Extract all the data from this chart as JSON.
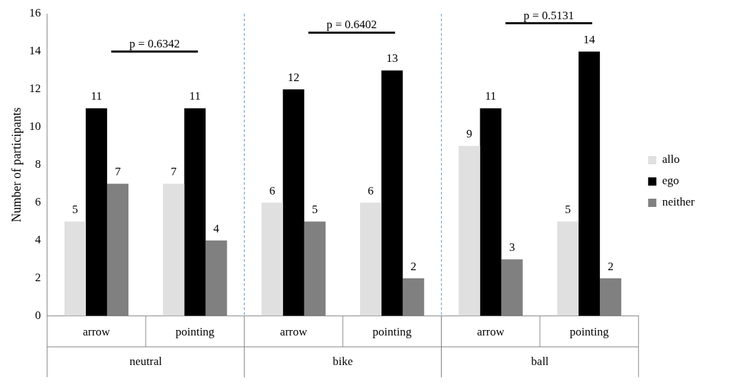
{
  "chart_data": {
    "type": "bar",
    "ylabel": "Number of participants",
    "categories": [
      "arrow",
      "pointing",
      "arrow",
      "pointing",
      "arrow",
      "pointing"
    ],
    "series": [
      {
        "name": "allo",
        "color": "#e0e0e0",
        "values": [
          5,
          7,
          6,
          6,
          9,
          5
        ]
      },
      {
        "name": "ego",
        "color": "#000000",
        "values": [
          11,
          11,
          12,
          13,
          11,
          14
        ]
      },
      {
        "name": "neither",
        "color": "#808080",
        "values": [
          7,
          4,
          5,
          2,
          3,
          2
        ]
      }
    ],
    "ylim": [
      0,
      16
    ],
    "yticks": [
      0,
      2,
      4,
      6,
      8,
      10,
      12,
      14,
      16
    ],
    "grid": false,
    "legend": "right",
    "data_labels": true,
    "annotations": [
      "p = 0.6342",
      "p = 0.6402",
      "p = 0.5131",
      "neutral",
      "bike",
      "ball"
    ]
  }
}
